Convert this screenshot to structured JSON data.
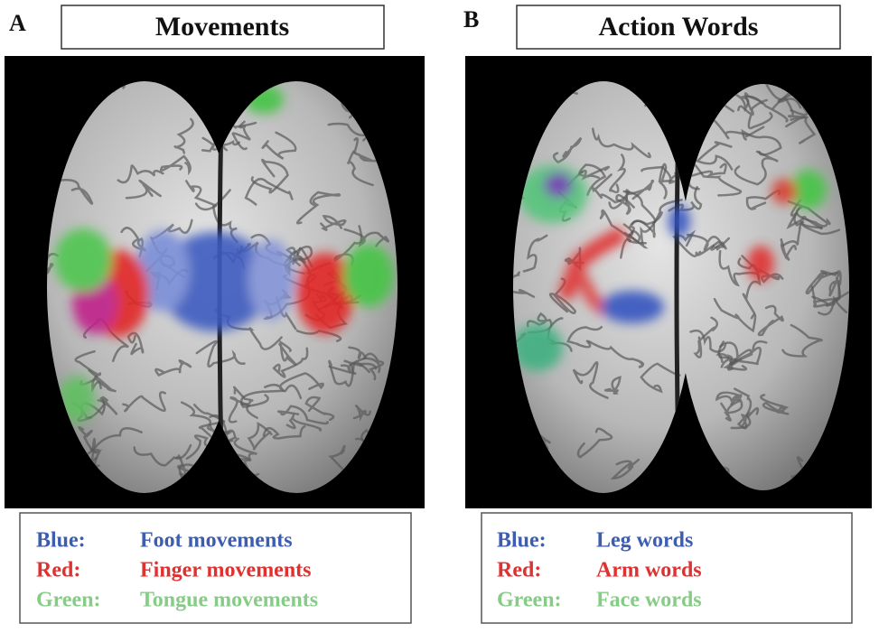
{
  "panels": [
    {
      "letter": "A",
      "title": "Movements",
      "legend": [
        {
          "label": "Blue:",
          "text": "Foot movements"
        },
        {
          "label": "Red:",
          "text": "Finger movements"
        },
        {
          "label": "Green:",
          "text": "Tongue movements"
        }
      ]
    },
    {
      "letter": "B",
      "title": "Action Words",
      "legend": [
        {
          "label": "Blue:",
          "text": "Leg words"
        },
        {
          "label": "Red:",
          "text": "Arm words"
        },
        {
          "label": "Green:",
          "text": "Face words"
        }
      ]
    }
  ]
}
